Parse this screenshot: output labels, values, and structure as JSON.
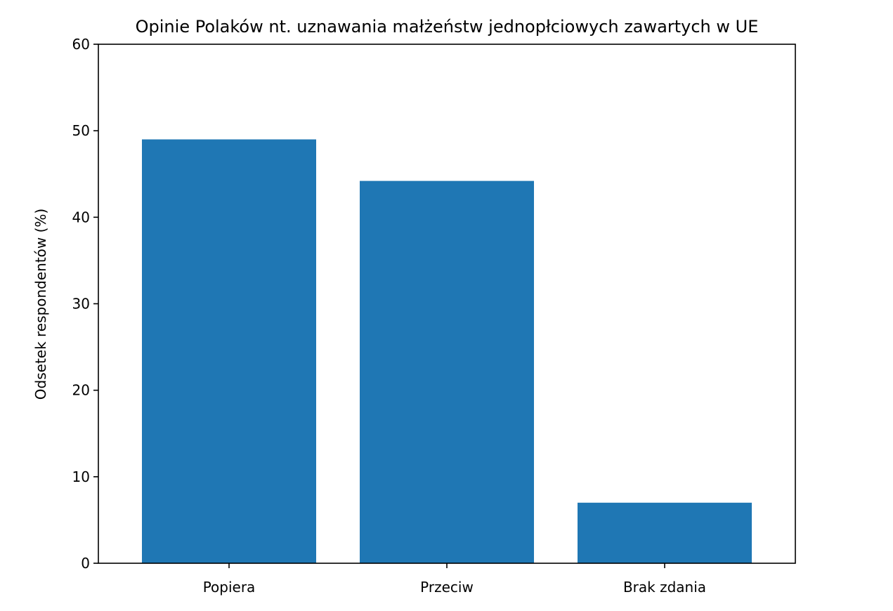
{
  "chart_data": {
    "type": "bar",
    "title": "Opinie Polaków nt. uznawania małżeństw jednopłciowych zawartych w UE",
    "xlabel": "",
    "ylabel": "Odsetek respondentów (%)",
    "categories": [
      "Popiera",
      "Przeciw",
      "Brak zdania"
    ],
    "values": [
      49,
      44.2,
      7
    ],
    "ylim": [
      0,
      60
    ],
    "yticks": [
      0,
      10,
      20,
      30,
      40,
      50,
      60
    ],
    "ytick_labels": [
      "0",
      "10",
      "20",
      "30",
      "40",
      "50",
      "60"
    ],
    "grid": false,
    "legend": "none",
    "bar_color": "#1f77b4"
  }
}
